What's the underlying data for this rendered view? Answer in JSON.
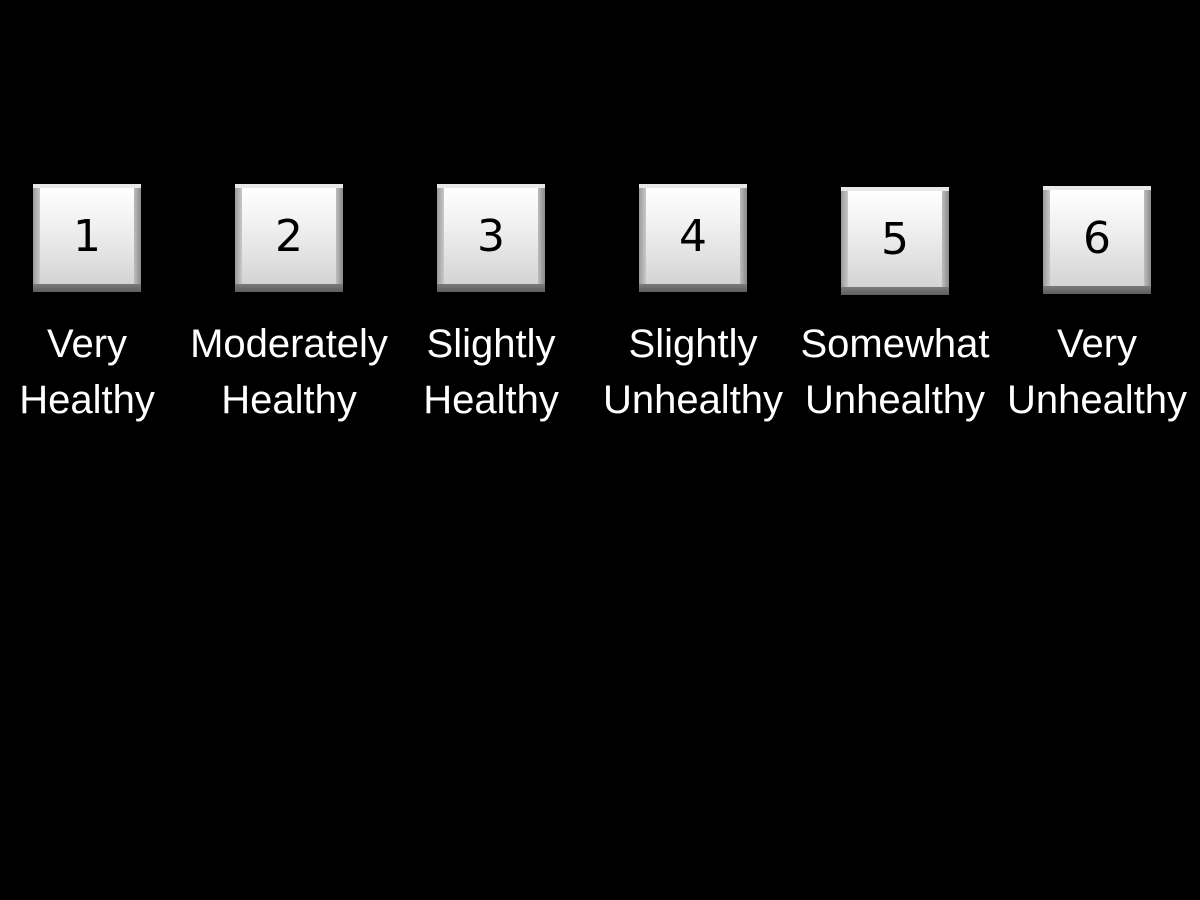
{
  "background_color": "#000000",
  "scale": {
    "options": [
      {
        "number": "1",
        "line1": "Very",
        "line2": "Healthy"
      },
      {
        "number": "2",
        "line1": "Moderately",
        "line2": "Healthy"
      },
      {
        "number": "3",
        "line1": "Slightly",
        "line2": "Healthy"
      },
      {
        "number": "4",
        "line1": "Slightly",
        "line2": "Unhealthy"
      },
      {
        "number": "5",
        "line1": "Somewhat",
        "line2": "Unhealthy"
      },
      {
        "number": "6",
        "line1": "Very",
        "line2": "Unhealthy"
      }
    ]
  }
}
